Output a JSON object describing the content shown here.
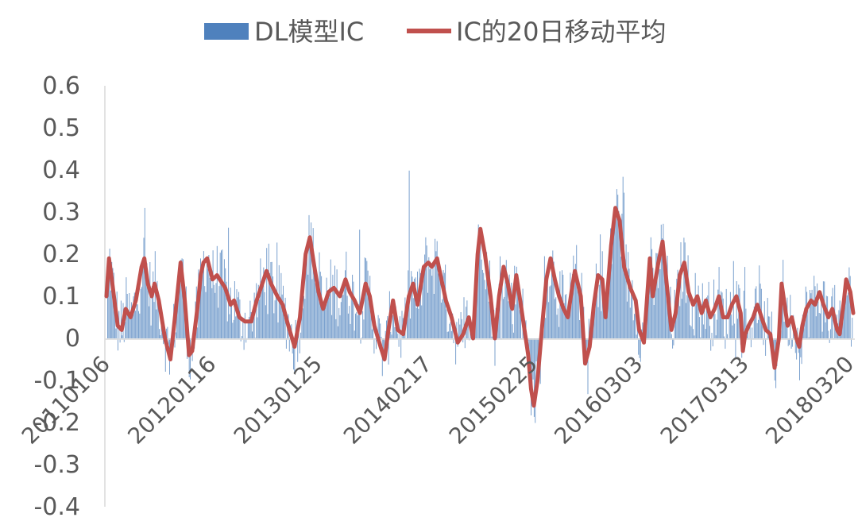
{
  "chart_data": {
    "type": "bar+line",
    "title": "",
    "xlabel": "",
    "ylabel": "",
    "ylim": [
      -0.4,
      0.6
    ],
    "yticks": [
      0.6,
      0.5,
      0.4,
      0.3,
      0.2,
      0.1,
      0,
      -0.1,
      -0.2,
      -0.3,
      -0.4
    ],
    "ytick_labels": [
      "0.6",
      "0.5",
      "0.4",
      "0.3",
      "0.2",
      "0.1",
      "0",
      "-0.1",
      "-0.2",
      "-0.3",
      "-0.4"
    ],
    "x_range": [
      "20110106",
      "20180330"
    ],
    "x_tick_labels": [
      "20110106",
      "20120116",
      "20130125",
      "20140217",
      "20150225",
      "20160303",
      "20170313",
      "20180320"
    ],
    "grid": false,
    "legend_position": "top",
    "series": [
      {
        "name": "DL模型IC",
        "kind": "bar",
        "color": "#4F81BD"
      },
      {
        "name": "IC的20日移动平均",
        "kind": "line",
        "color": "#C0504D"
      }
    ],
    "ma_points": [
      [
        "20110106",
        0.1
      ],
      [
        "20110115",
        0.19
      ],
      [
        "20110125",
        0.14
      ],
      [
        "20110205",
        0.08
      ],
      [
        "20110215",
        0.03
      ],
      [
        "20110301",
        0.02
      ],
      [
        "20110315",
        0.07
      ],
      [
        "20110401",
        0.05
      ],
      [
        "20110420",
        0.09
      ],
      [
        "20110510",
        0.17
      ],
      [
        "20110520",
        0.19
      ],
      [
        "20110601",
        0.13
      ],
      [
        "20110615",
        0.1
      ],
      [
        "20110625",
        0.13
      ],
      [
        "20110710",
        0.09
      ],
      [
        "20110801",
        0.0
      ],
      [
        "20110820",
        -0.05
      ],
      [
        "20110910",
        0.08
      ],
      [
        "20110925",
        0.18
      ],
      [
        "20111010",
        0.09
      ],
      [
        "20111025",
        -0.04
      ],
      [
        "20111105",
        -0.03
      ],
      [
        "20111125",
        0.08
      ],
      [
        "20111205",
        0.15
      ],
      [
        "20111215",
        0.18
      ],
      [
        "20111228",
        0.19
      ],
      [
        "20120116",
        0.14
      ],
      [
        "20120201",
        0.15
      ],
      [
        "20120301",
        0.12
      ],
      [
        "20120320",
        0.08
      ],
      [
        "20120401",
        0.09
      ],
      [
        "20120420",
        0.05
      ],
      [
        "20120510",
        0.04
      ],
      [
        "20120601",
        0.04
      ],
      [
        "20120620",
        0.09
      ],
      [
        "20120710",
        0.13
      ],
      [
        "20120725",
        0.16
      ],
      [
        "20120810",
        0.13
      ],
      [
        "20120901",
        0.1
      ],
      [
        "20120920",
        0.08
      ],
      [
        "20121010",
        0.03
      ],
      [
        "20121101",
        -0.02
      ],
      [
        "20121120",
        0.05
      ],
      [
        "20121210",
        0.2
      ],
      [
        "20121225",
        0.24
      ],
      [
        "20130110",
        0.17
      ],
      [
        "20130125",
        0.11
      ],
      [
        "20130210",
        0.07
      ],
      [
        "20130301",
        0.11
      ],
      [
        "20130320",
        0.12
      ],
      [
        "20130410",
        0.1
      ],
      [
        "20130430",
        0.14
      ],
      [
        "20130515",
        0.11
      ],
      [
        "20130601",
        0.09
      ],
      [
        "20130620",
        0.06
      ],
      [
        "20130710",
        0.13
      ],
      [
        "20130725",
        0.1
      ],
      [
        "20130810",
        0.03
      ],
      [
        "20130901",
        -0.02
      ],
      [
        "20130915",
        -0.05
      ],
      [
        "20131001",
        0.03
      ],
      [
        "20131015",
        0.09
      ],
      [
        "20131101",
        0.02
      ],
      [
        "20131120",
        0.01
      ],
      [
        "20131210",
        0.1
      ],
      [
        "20131225",
        0.13
      ],
      [
        "20140110",
        0.08
      ],
      [
        "20140201",
        0.17
      ],
      [
        "20140217",
        0.18
      ],
      [
        "20140301",
        0.17
      ],
      [
        "20140320",
        0.19
      ],
      [
        "20140401",
        0.15
      ],
      [
        "20140420",
        0.09
      ],
      [
        "20140510",
        0.05
      ],
      [
        "20140601",
        -0.01
      ],
      [
        "20140620",
        0.01
      ],
      [
        "20140710",
        0.05
      ],
      [
        "20140725",
        0.0
      ],
      [
        "20140810",
        0.2
      ],
      [
        "20140820",
        0.26
      ],
      [
        "20140905",
        0.2
      ],
      [
        "20140925",
        0.1
      ],
      [
        "20141010",
        0.0
      ],
      [
        "20141025",
        0.1
      ],
      [
        "20141110",
        0.17
      ],
      [
        "20141125",
        0.13
      ],
      [
        "20141210",
        0.07
      ],
      [
        "20141225",
        0.15
      ],
      [
        "20150110",
        0.08
      ],
      [
        "20150125",
        0.01
      ],
      [
        "20150205",
        -0.04
      ],
      [
        "20150215",
        -0.12
      ],
      [
        "20150225",
        -0.16
      ],
      [
        "20150310",
        -0.1
      ],
      [
        "20150325",
        0.02
      ],
      [
        "20150410",
        0.14
      ],
      [
        "20150425",
        0.19
      ],
      [
        "20150510",
        0.14
      ],
      [
        "20150525",
        0.1
      ],
      [
        "20150610",
        0.07
      ],
      [
        "20150625",
        0.05
      ],
      [
        "20150710",
        0.12
      ],
      [
        "20150720",
        0.16
      ],
      [
        "20150810",
        0.1
      ],
      [
        "20150825",
        -0.06
      ],
      [
        "20150910",
        -0.02
      ],
      [
        "20150925",
        0.08
      ],
      [
        "20151010",
        0.15
      ],
      [
        "20151025",
        0.14
      ],
      [
        "20151105",
        0.05
      ],
      [
        "20151125",
        0.22
      ],
      [
        "20151210",
        0.31
      ],
      [
        "20151225",
        0.28
      ],
      [
        "20160110",
        0.17
      ],
      [
        "20160201",
        0.12
      ],
      [
        "20160220",
        0.09
      ],
      [
        "20160303",
        0.02
      ],
      [
        "20160320",
        -0.01
      ],
      [
        "20160410",
        0.19
      ],
      [
        "20160420",
        0.1
      ],
      [
        "20160510",
        0.18
      ],
      [
        "20160525",
        0.23
      ],
      [
        "20160610",
        0.12
      ],
      [
        "20160625",
        0.02
      ],
      [
        "20160710",
        0.06
      ],
      [
        "20160725",
        0.15
      ],
      [
        "20160810",
        0.18
      ],
      [
        "20160825",
        0.11
      ],
      [
        "20160910",
        0.08
      ],
      [
        "20160925",
        0.1
      ],
      [
        "20161010",
        0.06
      ],
      [
        "20161025",
        0.09
      ],
      [
        "20161110",
        0.05
      ],
      [
        "20161125",
        0.07
      ],
      [
        "20161210",
        0.1
      ],
      [
        "20161225",
        0.05
      ],
      [
        "20170110",
        0.05
      ],
      [
        "20170125",
        0.08
      ],
      [
        "20170210",
        0.1
      ],
      [
        "20170225",
        0.06
      ],
      [
        "20170305",
        -0.03
      ],
      [
        "20170313",
        0.01
      ],
      [
        "20170325",
        0.03
      ],
      [
        "20170410",
        0.05
      ],
      [
        "20170425",
        0.08
      ],
      [
        "20170510",
        0.05
      ],
      [
        "20170525",
        0.02
      ],
      [
        "20170610",
        0.01
      ],
      [
        "20170625",
        -0.07
      ],
      [
        "20170710",
        0.0
      ],
      [
        "20170720",
        0.13
      ],
      [
        "20170810",
        0.03
      ],
      [
        "20170825",
        0.05
      ],
      [
        "20170910",
        0.0
      ],
      [
        "20170920",
        -0.02
      ],
      [
        "20171001",
        0.03
      ],
      [
        "20171015",
        0.07
      ],
      [
        "20171101",
        0.09
      ],
      [
        "20171115",
        0.08
      ],
      [
        "20171201",
        0.11
      ],
      [
        "20171215",
        0.08
      ],
      [
        "20180101",
        0.05
      ],
      [
        "20180115",
        0.07
      ],
      [
        "20180201",
        0.02
      ],
      [
        "20180210",
        0.01
      ],
      [
        "20180225",
        0.09
      ],
      [
        "20180305",
        0.14
      ],
      [
        "20180320",
        0.11
      ],
      [
        "20180330",
        0.06
      ]
    ]
  }
}
